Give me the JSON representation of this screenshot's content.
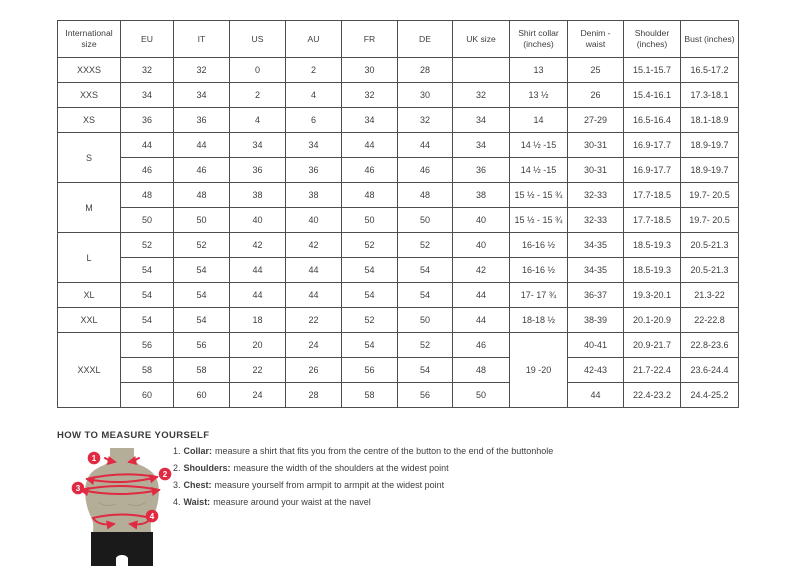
{
  "colors": {
    "accent_red": "#e02a42",
    "body_beige": "#b4ae98",
    "shorts_black": "#1a1a1a",
    "border_gray": "#4d4d4d",
    "text_dark": "#3e3e3e"
  },
  "table": {
    "headers": [
      "International size",
      "EU",
      "IT",
      "US",
      "AU",
      "FR",
      "DE",
      "UK size",
      "Shirt collar (inches)",
      "Denim - waist",
      "Shoulder (inches)",
      "Bust (inches)"
    ],
    "rows": [
      {
        "cells": [
          {
            "t": "XXXS"
          },
          {
            "t": "32"
          },
          {
            "t": "32"
          },
          {
            "t": "0"
          },
          {
            "t": "2"
          },
          {
            "t": "30"
          },
          {
            "t": "28"
          },
          {
            "t": ""
          },
          {
            "t": "13"
          },
          {
            "t": "25"
          },
          {
            "t": "15.1-15.7"
          },
          {
            "t": "16.5-17.2"
          }
        ]
      },
      {
        "cells": [
          {
            "t": "XXS"
          },
          {
            "t": "34"
          },
          {
            "t": "34"
          },
          {
            "t": "2"
          },
          {
            "t": "4"
          },
          {
            "t": "32"
          },
          {
            "t": "30"
          },
          {
            "t": "32"
          },
          {
            "t": "13 ½"
          },
          {
            "t": "26"
          },
          {
            "t": "15.4-16.1"
          },
          {
            "t": "17.3-18.1"
          }
        ]
      },
      {
        "cells": [
          {
            "t": "XS"
          },
          {
            "t": "36"
          },
          {
            "t": "36"
          },
          {
            "t": "4"
          },
          {
            "t": "6"
          },
          {
            "t": "34"
          },
          {
            "t": "32"
          },
          {
            "t": "34"
          },
          {
            "t": "14"
          },
          {
            "t": "27-29"
          },
          {
            "t": "16.5-16.4"
          },
          {
            "t": "18.1-18.9"
          }
        ]
      },
      {
        "cells": [
          {
            "t": "S",
            "rs": 2
          },
          {
            "t": "44"
          },
          {
            "t": "44"
          },
          {
            "t": "34"
          },
          {
            "t": "34"
          },
          {
            "t": "44"
          },
          {
            "t": "44"
          },
          {
            "t": "34"
          },
          {
            "t": "14 ½ -15"
          },
          {
            "t": "30-31"
          },
          {
            "t": "16.9-17.7"
          },
          {
            "t": "18.9-19.7"
          }
        ]
      },
      {
        "cells": [
          {
            "t": "46"
          },
          {
            "t": "46"
          },
          {
            "t": "36"
          },
          {
            "t": "36"
          },
          {
            "t": "46"
          },
          {
            "t": "46"
          },
          {
            "t": "36"
          },
          {
            "t": "14 ½ -15"
          },
          {
            "t": "30-31"
          },
          {
            "t": "16.9-17.7"
          },
          {
            "t": "18.9-19.7"
          }
        ]
      },
      {
        "cells": [
          {
            "t": "M",
            "rs": 2
          },
          {
            "t": "48"
          },
          {
            "t": "48"
          },
          {
            "t": "38"
          },
          {
            "t": "38"
          },
          {
            "t": "48"
          },
          {
            "t": "48"
          },
          {
            "t": "38"
          },
          {
            "t": "15 ½ - 15 ¾"
          },
          {
            "t": "32-33"
          },
          {
            "t": "17.7-18.5"
          },
          {
            "t": "19.7- 20.5"
          }
        ]
      },
      {
        "cells": [
          {
            "t": "50"
          },
          {
            "t": "50"
          },
          {
            "t": "40"
          },
          {
            "t": "40"
          },
          {
            "t": "50"
          },
          {
            "t": "50"
          },
          {
            "t": "40"
          },
          {
            "t": "15 ½ - 15 ¾"
          },
          {
            "t": "32-33"
          },
          {
            "t": "17.7-18.5"
          },
          {
            "t": "19.7- 20.5"
          }
        ]
      },
      {
        "cells": [
          {
            "t": "L",
            "rs": 2
          },
          {
            "t": "52"
          },
          {
            "t": "52"
          },
          {
            "t": "42"
          },
          {
            "t": "42"
          },
          {
            "t": "52"
          },
          {
            "t": "52"
          },
          {
            "t": "40"
          },
          {
            "t": "16-16 ½"
          },
          {
            "t": "34-35"
          },
          {
            "t": "18.5-19.3"
          },
          {
            "t": "20.5-21.3"
          }
        ]
      },
      {
        "cells": [
          {
            "t": "54"
          },
          {
            "t": "54"
          },
          {
            "t": "44"
          },
          {
            "t": "44"
          },
          {
            "t": "54"
          },
          {
            "t": "54"
          },
          {
            "t": "42"
          },
          {
            "t": "16-16 ½"
          },
          {
            "t": "34-35"
          },
          {
            "t": "18.5-19.3"
          },
          {
            "t": "20.5-21.3"
          }
        ]
      },
      {
        "cells": [
          {
            "t": "XL"
          },
          {
            "t": "54"
          },
          {
            "t": "54"
          },
          {
            "t": "44"
          },
          {
            "t": "44"
          },
          {
            "t": "54"
          },
          {
            "t": "54"
          },
          {
            "t": "44"
          },
          {
            "t": "17- 17 ¾"
          },
          {
            "t": "36-37"
          },
          {
            "t": "19.3-20.1"
          },
          {
            "t": "21.3-22"
          }
        ]
      },
      {
        "cells": [
          {
            "t": "XXL"
          },
          {
            "t": "54"
          },
          {
            "t": "54"
          },
          {
            "t": "18"
          },
          {
            "t": "22"
          },
          {
            "t": "52"
          },
          {
            "t": "50"
          },
          {
            "t": "44"
          },
          {
            "t": "18-18 ½"
          },
          {
            "t": "38-39"
          },
          {
            "t": "20.1-20.9"
          },
          {
            "t": "22-22.8"
          }
        ]
      },
      {
        "cells": [
          {
            "t": "XXXL",
            "rs": 3
          },
          {
            "t": "56"
          },
          {
            "t": "56"
          },
          {
            "t": "20"
          },
          {
            "t": "24"
          },
          {
            "t": "54"
          },
          {
            "t": "52"
          },
          {
            "t": "46"
          },
          {
            "t": "19 -20",
            "rs": 3
          },
          {
            "t": "40-41"
          },
          {
            "t": "20.9-21.7"
          },
          {
            "t": "22.8-23.6"
          }
        ]
      },
      {
        "cells": [
          {
            "t": "58"
          },
          {
            "t": "58"
          },
          {
            "t": "22"
          },
          {
            "t": "26"
          },
          {
            "t": "56"
          },
          {
            "t": "54"
          },
          {
            "t": "48"
          },
          {
            "t": "42-43"
          },
          {
            "t": "21.7-22.4"
          },
          {
            "t": "23.6-24.4"
          }
        ]
      },
      {
        "cells": [
          {
            "t": "60"
          },
          {
            "t": "60"
          },
          {
            "t": "24"
          },
          {
            "t": "28"
          },
          {
            "t": "58"
          },
          {
            "t": "56"
          },
          {
            "t": "50"
          },
          {
            "t": "44"
          },
          {
            "t": "22.4-23.2"
          },
          {
            "t": "24.4-25.2"
          }
        ]
      }
    ]
  },
  "measure": {
    "heading": "HOW TO MEASURE YOURSELF",
    "badges": [
      "1",
      "2",
      "3",
      "4"
    ],
    "steps": [
      {
        "num": "1.",
        "label": "Collar:",
        "text": "measure a shirt that fits you from the centre of the button to the end of the buttonhole"
      },
      {
        "num": "2.",
        "label": "Shoulders:",
        "text": "measure the width of the shoulders at the widest point"
      },
      {
        "num": "3.",
        "label": "Chest:",
        "text": "measure yourself from armpit to armpit at the widest point"
      },
      {
        "num": "4.",
        "label": "Waist:",
        "text": "measure around your waist at the navel"
      }
    ]
  }
}
